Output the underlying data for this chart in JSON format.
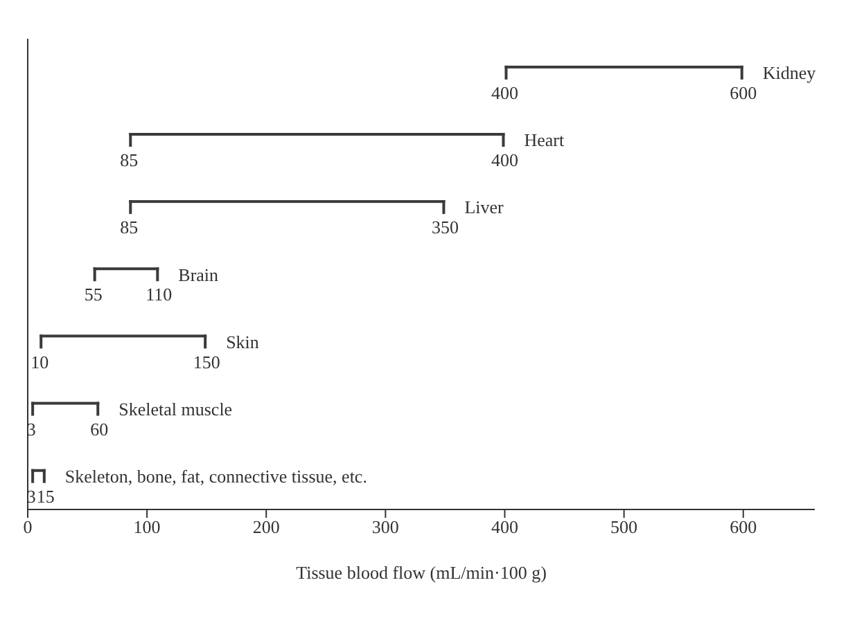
{
  "chart_data": {
    "type": "bar",
    "orientation": "horizontal",
    "xlabel": "Tissue blood flow  (mL/min·100 g)",
    "categories": [
      "Kidney",
      "Heart",
      "Liver",
      "Brain",
      "Skin",
      "Skeletal muscle",
      "Skeleton, bone, fat, connective tissue, etc."
    ],
    "base": [
      400,
      85,
      85,
      55,
      10,
      3,
      3
    ],
    "values": [
      200,
      315,
      265,
      55,
      140,
      57,
      12
    ],
    "color": "#3a3a3a",
    "xlim": [
      0,
      660
    ],
    "xticks": [
      0,
      100,
      200,
      300,
      400,
      500,
      600
    ],
    "tick_labels": "x",
    "grid": false,
    "legend": false,
    "annotations": [
      {
        "text": "400",
        "x": 400,
        "y": "Kidney"
      },
      {
        "text": "600",
        "x": 600,
        "y": "Kidney"
      },
      {
        "text": "85",
        "x": 85,
        "y": "Heart"
      },
      {
        "text": "400",
        "x": 400,
        "y": "Heart"
      },
      {
        "text": "85",
        "x": 85,
        "y": "Liver"
      },
      {
        "text": "350",
        "x": 350,
        "y": "Liver"
      },
      {
        "text": "55",
        "x": 55,
        "y": "Brain"
      },
      {
        "text": "110",
        "x": 110,
        "y": "Brain"
      },
      {
        "text": "10",
        "x": 10,
        "y": "Skin"
      },
      {
        "text": "150",
        "x": 150,
        "y": "Skin"
      },
      {
        "text": "3",
        "x": 3,
        "y": "Skeletal muscle"
      },
      {
        "text": "60",
        "x": 60,
        "y": "Skeletal muscle"
      },
      {
        "text": "3",
        "x": 3,
        "y": "Skeleton, bone, fat, connective tissue, etc."
      },
      {
        "text": "15",
        "x": 15,
        "y": "Skeleton, bone, fat, connective tissue, etc."
      }
    ]
  }
}
